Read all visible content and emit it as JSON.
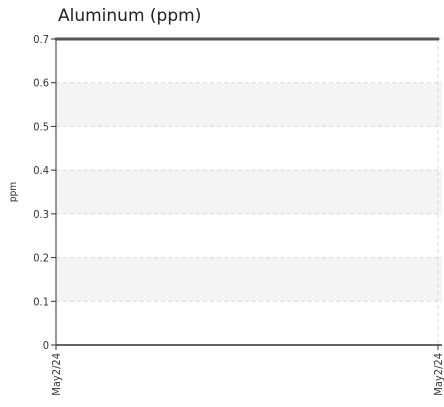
{
  "chart_data": {
    "type": "line",
    "title": "Aluminum (ppm)",
    "xlabel": "",
    "ylabel": "ppm",
    "ylim": [
      0,
      0.7
    ],
    "yticks": [
      "0",
      "0.1",
      "0.2",
      "0.3",
      "0.4",
      "0.5",
      "0.6",
      "0.7"
    ],
    "x": [
      "May2/24",
      "May2/24"
    ],
    "series": [
      {
        "values": [
          0.7,
          0.7
        ],
        "color": "#555555"
      }
    ],
    "grid": true,
    "banded_background": true
  }
}
